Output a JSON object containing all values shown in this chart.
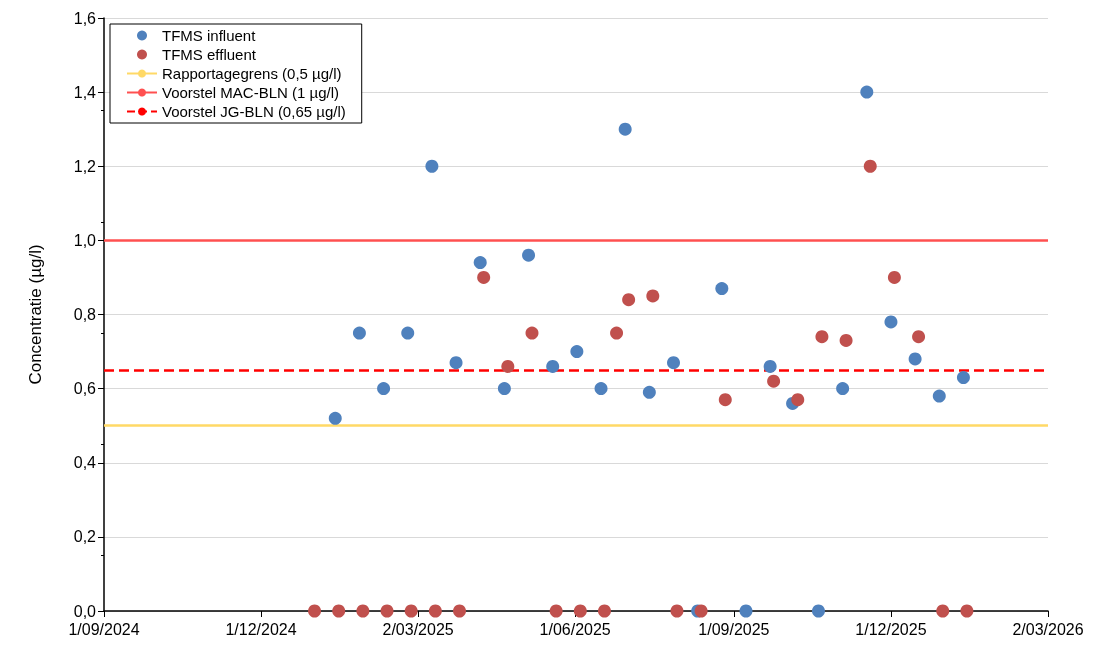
{
  "chart_data": {
    "type": "scatter",
    "ylabel": "Concentratie (µg/l)",
    "xlim": [
      "2024-09-01",
      "2026-03-02"
    ],
    "xticks": [
      {
        "value": "2024-09-01",
        "label": "1/09/2024"
      },
      {
        "value": "2024-12-01",
        "label": "1/12/2024"
      },
      {
        "value": "2025-03-02",
        "label": "2/03/2025"
      },
      {
        "value": "2025-06-01",
        "label": "1/06/2025"
      },
      {
        "value": "2025-09-01",
        "label": "1/09/2025"
      },
      {
        "value": "2025-12-01",
        "label": "1/12/2025"
      },
      {
        "value": "2026-03-02",
        "label": "2/03/2026"
      }
    ],
    "ylim": [
      0,
      1.6
    ],
    "yticks": [
      {
        "value": 0,
        "label": "0,0"
      },
      {
        "value": 0.2,
        "label": "0,2"
      },
      {
        "value": 0.4,
        "label": "0,4"
      },
      {
        "value": 0.6,
        "label": "0,6"
      },
      {
        "value": 0.8,
        "label": "0,8"
      },
      {
        "value": 1,
        "label": "1,0"
      },
      {
        "value": 1.2,
        "label": "1,2"
      },
      {
        "value": 1.4,
        "label": "1,4"
      },
      {
        "value": 1.6,
        "label": "1,6"
      }
    ],
    "grid": "y",
    "legend": "top left",
    "marker": "circle",
    "series": [
      {
        "name": "TFMS influent",
        "color": "#4f81bd",
        "x": [
          "2025-01-13",
          "2025-01-27",
          "2025-02-10",
          "2025-02-24",
          "2025-03-10",
          "2025-03-24",
          "2025-04-07",
          "2025-04-21",
          "2025-05-05",
          "2025-05-19",
          "2025-06-02",
          "2025-06-16",
          "2025-06-30",
          "2025-07-14",
          "2025-07-28",
          "2025-08-11",
          "2025-08-25",
          "2025-09-08",
          "2025-09-22",
          "2025-10-05",
          "2025-10-20",
          "2025-11-03",
          "2025-11-17",
          "2025-12-01",
          "2025-12-15",
          "2025-12-29",
          "2026-01-12"
        ],
        "values": [
          0.52,
          0.75,
          0.6,
          0.75,
          1.2,
          0.67,
          0.94,
          0.6,
          0.96,
          0.66,
          0.7,
          0.6,
          1.3,
          0.59,
          0.67,
          0,
          0.87,
          0,
          0.66,
          0.56,
          0,
          0.6,
          1.4,
          0.78,
          0.68,
          0.58,
          0.63
        ]
      },
      {
        "name": "TFMS effluent",
        "color": "#c0504d",
        "x": [
          "2025-01-01",
          "2025-01-15",
          "2025-01-29",
          "2025-02-12",
          "2025-02-26",
          "2025-03-12",
          "2025-03-26",
          "2025-04-09",
          "2025-04-23",
          "2025-05-07",
          "2025-05-21",
          "2025-06-04",
          "2025-06-18",
          "2025-06-25",
          "2025-07-02",
          "2025-07-16",
          "2025-07-30",
          "2025-08-13",
          "2025-08-27",
          "2025-09-24",
          "2025-10-08",
          "2025-10-22",
          "2025-11-05",
          "2025-11-19",
          "2025-12-03",
          "2025-12-17",
          "2025-12-31",
          "2026-01-14"
        ],
        "values": [
          0,
          0,
          0,
          0,
          0,
          0,
          0,
          0.9,
          0.66,
          0.75,
          0,
          0,
          0,
          0.75,
          0.84,
          0.85,
          0,
          0,
          0.57,
          0.62,
          0.57,
          0.74,
          0.73,
          1.2,
          0.9,
          0.74,
          0,
          0
        ]
      }
    ],
    "ref_lines": [
      {
        "axis": "y",
        "value": 0.5,
        "label": "Rapportagegrens (0,5 µg/l)",
        "color": "#ffd966",
        "line_style": "solid"
      },
      {
        "axis": "y",
        "value": 1,
        "label": "Voorstel MAC-BLN (1 µg/l)",
        "color": "#ff5050",
        "line_style": "solid"
      },
      {
        "axis": "y",
        "value": 0.65,
        "label": "Voorstel JG-BLN (0,65 µg/l)",
        "color": "#ff0000",
        "line_style": "dashed"
      }
    ]
  }
}
